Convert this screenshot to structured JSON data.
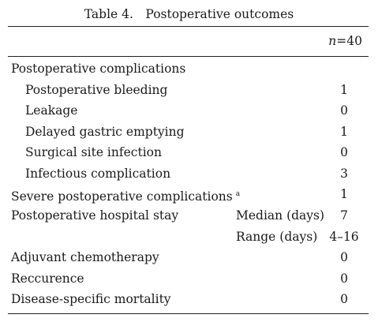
{
  "table": {
    "caption": "Table 4.　Postoperative outcomes",
    "n_label": "n",
    "n_value": "=40",
    "rows": [
      {
        "label": "Postoperative complications",
        "value": ""
      },
      {
        "label": "Postoperative bleeding",
        "value": "1"
      },
      {
        "label": "Leakage",
        "value": "0"
      },
      {
        "label": "Delayed gastric emptying",
        "value": "1"
      },
      {
        "label": "Surgical site infection",
        "value": "0"
      },
      {
        "label": "Infectious complication",
        "value": "3"
      },
      {
        "label": "Severe postoperative complications",
        "footnote": "a",
        "value": "1"
      },
      {
        "label": "Postoperative hospital stay",
        "sublabel": "Median (days)",
        "value": "7"
      },
      {
        "label": "",
        "sublabel": "Range (days)",
        "value": "4–16"
      },
      {
        "label": "Adjuvant chemotherapy",
        "value": "0"
      },
      {
        "label": "Reccurence",
        "value": "0"
      },
      {
        "label": "Disease-specific mortality",
        "value": "0"
      }
    ]
  }
}
